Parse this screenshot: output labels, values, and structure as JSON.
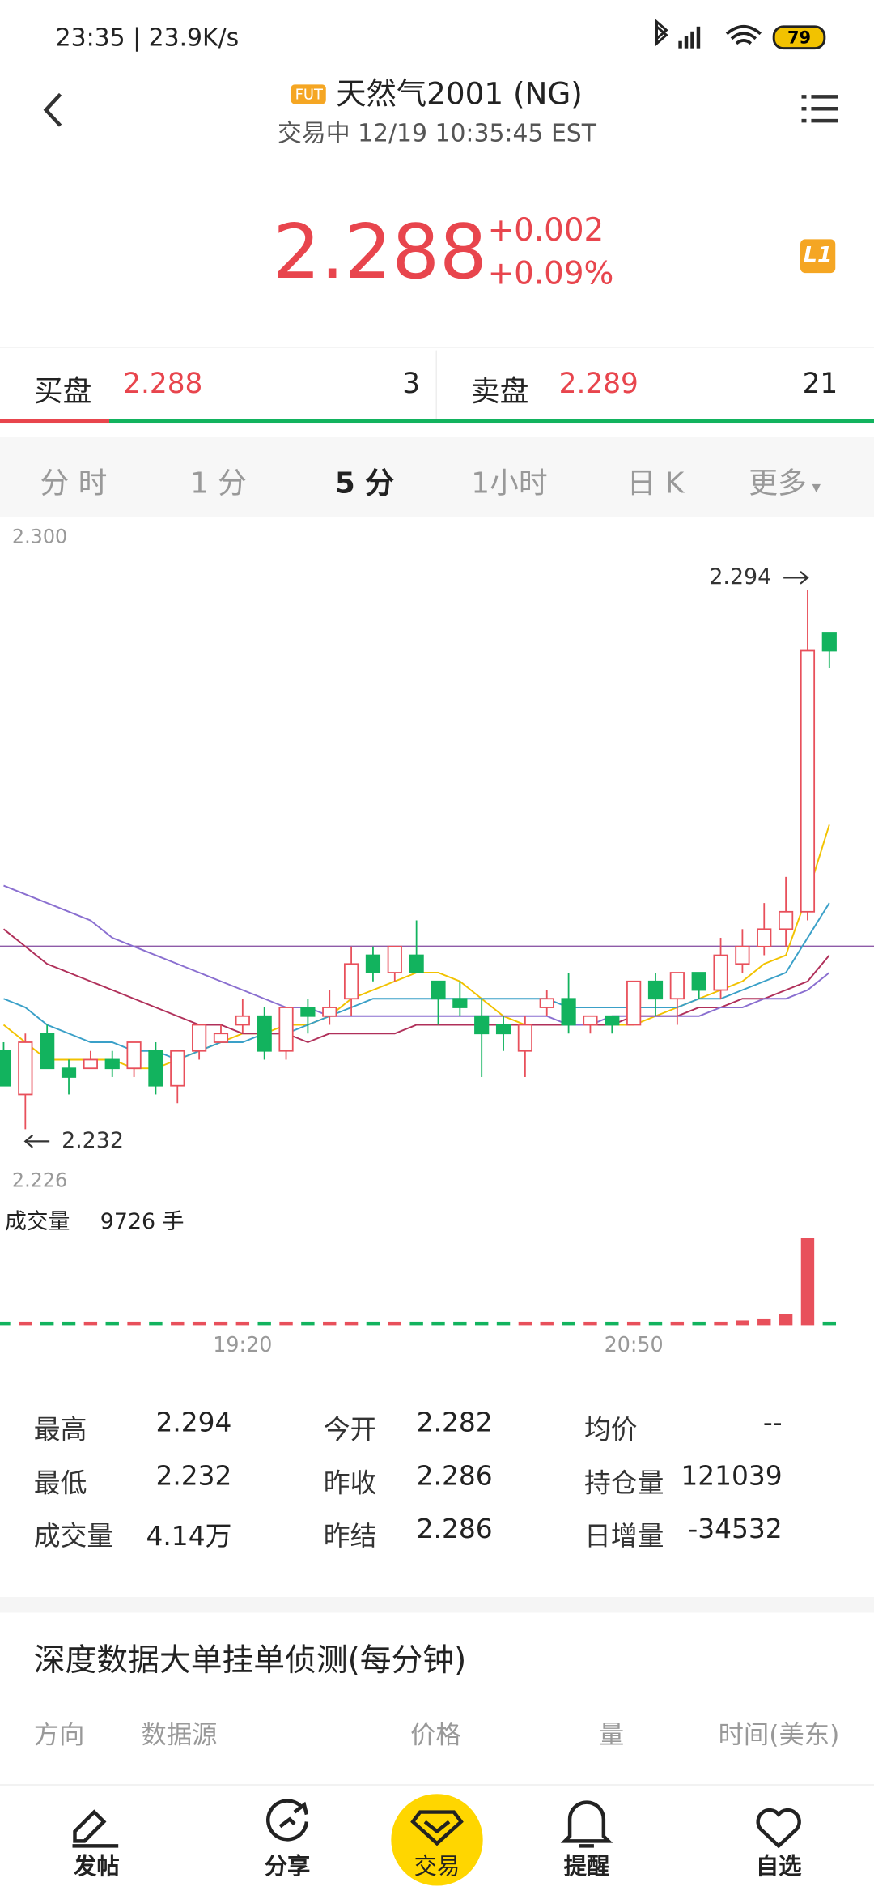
{
  "status_bar": {
    "time": "23:35 | 23.9K/s",
    "battery": "79"
  },
  "header": {
    "badge": "FUT",
    "title": "天然气2001 (NG)",
    "subtitle": "交易中 12/19 10:35:45 EST"
  },
  "quote": {
    "price": "2.288",
    "change": "+0.002",
    "change_pct": "+0.09%",
    "badge": "L1"
  },
  "order_book": {
    "bid_label": "买盘",
    "bid_price": "2.288",
    "bid_size": 3,
    "ask_label": "卖盘",
    "ask_price": "2.289",
    "ask_size": 21
  },
  "tabs": [
    "分 时",
    "1 分",
    "5 分",
    "1小时",
    "日 K",
    "更多"
  ],
  "active_tab": 2,
  "chart_data": {
    "type": "candlestick",
    "categories": [
      null,
      null,
      null,
      null,
      null,
      null,
      null,
      null,
      null,
      null,
      null,
      "19:20",
      null,
      null,
      null,
      null,
      null,
      null,
      null,
      null,
      null,
      null,
      null,
      null,
      null,
      null,
      null,
      null,
      null,
      "20:50",
      null,
      null,
      null,
      null,
      null,
      null,
      null,
      null,
      null
    ],
    "open": [
      2.241,
      2.236,
      2.243,
      2.239,
      2.239,
      2.24,
      2.239,
      2.241,
      2.237,
      2.241,
      2.242,
      2.244,
      2.245,
      2.241,
      2.246,
      2.245,
      2.247,
      2.252,
      2.25,
      2.252,
      2.249,
      2.247,
      2.245,
      2.244,
      2.241,
      2.246,
      2.247,
      2.244,
      2.245,
      2.244,
      2.249,
      2.247,
      2.25,
      2.248,
      2.251,
      2.253,
      2.255,
      2.257,
      2.289
    ],
    "high": [
      2.242,
      2.243,
      2.244,
      2.24,
      2.241,
      2.241,
      2.242,
      2.242,
      2.241,
      2.244,
      2.244,
      2.247,
      2.246,
      2.246,
      2.247,
      2.248,
      2.253,
      2.253,
      2.253,
      2.256,
      2.249,
      2.249,
      2.247,
      2.245,
      2.245,
      2.248,
      2.25,
      2.245,
      2.245,
      2.249,
      2.25,
      2.25,
      2.25,
      2.254,
      2.255,
      2.258,
      2.261,
      2.294,
      2.289
    ],
    "low": [
      2.237,
      2.232,
      2.239,
      2.236,
      2.239,
      2.238,
      2.238,
      2.236,
      2.235,
      2.24,
      2.242,
      2.243,
      2.24,
      2.24,
      2.243,
      2.244,
      2.245,
      2.249,
      2.249,
      2.25,
      2.244,
      2.245,
      2.238,
      2.241,
      2.238,
      2.245,
      2.243,
      2.243,
      2.243,
      2.244,
      2.245,
      2.244,
      2.247,
      2.247,
      2.25,
      2.252,
      2.253,
      2.256,
      2.285
    ],
    "close": [
      2.237,
      2.242,
      2.239,
      2.238,
      2.24,
      2.239,
      2.242,
      2.237,
      2.241,
      2.244,
      2.243,
      2.245,
      2.241,
      2.246,
      2.245,
      2.246,
      2.251,
      2.25,
      2.253,
      2.25,
      2.247,
      2.246,
      2.243,
      2.243,
      2.244,
      2.247,
      2.244,
      2.245,
      2.244,
      2.249,
      2.247,
      2.25,
      2.248,
      2.252,
      2.253,
      2.255,
      2.257,
      2.287,
      2.287
    ],
    "up_color": "#e8505b",
    "down_color": "#12b35e",
    "ylim": [
      2.226,
      2.3
    ],
    "yticks": [
      {
        "value": 2.3,
        "label": "2.300"
      },
      {
        "value": 2.226,
        "label": "2.226"
      }
    ],
    "annotations": [
      {
        "value": 2.294,
        "label": "2.294"
      },
      {
        "value": 2.232,
        "label": "2.232"
      }
    ],
    "reference_line": 2.253,
    "reference_color": "#8e5aa8",
    "ma_lines": [
      {
        "color": "#f2c200",
        "values": [
          2.244,
          2.242,
          2.24,
          2.24,
          2.24,
          2.24,
          2.239,
          2.239,
          2.24,
          2.241,
          2.242,
          2.243,
          2.243,
          2.244,
          2.244,
          2.245,
          2.247,
          2.248,
          2.249,
          2.25,
          2.25,
          2.249,
          2.247,
          2.245,
          2.244,
          2.244,
          2.244,
          2.244,
          2.244,
          2.244,
          2.245,
          2.246,
          2.247,
          2.248,
          2.249,
          2.251,
          2.252,
          2.259,
          2.267
        ]
      },
      {
        "color": "#3aa0c8",
        "values": [
          2.247,
          2.246,
          2.244,
          2.243,
          2.242,
          2.242,
          2.241,
          2.241,
          2.24,
          2.241,
          2.242,
          2.242,
          2.243,
          2.243,
          2.244,
          2.245,
          2.246,
          2.247,
          2.247,
          2.247,
          2.247,
          2.247,
          2.247,
          2.247,
          2.247,
          2.247,
          2.246,
          2.246,
          2.246,
          2.246,
          2.246,
          2.246,
          2.247,
          2.247,
          2.248,
          2.249,
          2.25,
          2.254,
          2.258
        ]
      },
      {
        "color": "#b0305a",
        "values": [
          2.255,
          2.253,
          2.251,
          2.25,
          2.249,
          2.248,
          2.247,
          2.246,
          2.245,
          2.244,
          2.244,
          2.243,
          2.243,
          2.243,
          2.242,
          2.243,
          2.243,
          2.243,
          2.243,
          2.244,
          2.244,
          2.244,
          2.244,
          2.244,
          2.244,
          2.244,
          2.244,
          2.244,
          2.244,
          2.245,
          2.245,
          2.245,
          2.246,
          2.246,
          2.247,
          2.247,
          2.248,
          2.249,
          2.252
        ]
      },
      {
        "color": "#8a6fd0",
        "values": [
          2.26,
          2.259,
          2.258,
          2.257,
          2.256,
          2.254,
          2.253,
          2.252,
          2.251,
          2.25,
          2.249,
          2.248,
          2.247,
          2.246,
          2.246,
          2.245,
          2.245,
          2.245,
          2.245,
          2.245,
          2.245,
          2.245,
          2.245,
          2.245,
          2.245,
          2.245,
          2.244,
          2.244,
          2.245,
          2.245,
          2.245,
          2.245,
          2.245,
          2.246,
          2.246,
          2.247,
          2.247,
          2.248,
          2.25
        ]
      }
    ],
    "volume_title": "成交量",
    "volume_current": "9726 手",
    "volume": [
      300,
      300,
      300,
      300,
      300,
      300,
      300,
      300,
      300,
      300,
      300,
      300,
      300,
      300,
      300,
      300,
      300,
      300,
      300,
      300,
      300,
      300,
      300,
      300,
      300,
      300,
      300,
      300,
      300,
      300,
      300,
      300,
      300,
      300,
      400,
      500,
      900,
      7200,
      300
    ],
    "volume_ylim": [
      0,
      10000
    ]
  },
  "stats": [
    [
      {
        "label": "最高",
        "value": "2.294"
      },
      {
        "label": "今开",
        "value": "2.282"
      },
      {
        "label": "均价",
        "value": "--"
      }
    ],
    [
      {
        "label": "最低",
        "value": "2.232"
      },
      {
        "label": "昨收",
        "value": "2.286"
      },
      {
        "label": "持仓量",
        "value": "121039"
      }
    ],
    [
      {
        "label": "成交量",
        "value": "4.14万"
      },
      {
        "label": "昨结",
        "value": "2.286"
      },
      {
        "label": "日增量",
        "value": "-34532"
      }
    ]
  ],
  "depth": {
    "title": "深度数据大单挂单侦测(每分钟)",
    "columns": [
      "方向",
      "数据源",
      "价格",
      "量",
      "时间(美东)"
    ]
  },
  "nav": [
    "发帖",
    "分享",
    "交易",
    "提醒",
    "自选"
  ]
}
